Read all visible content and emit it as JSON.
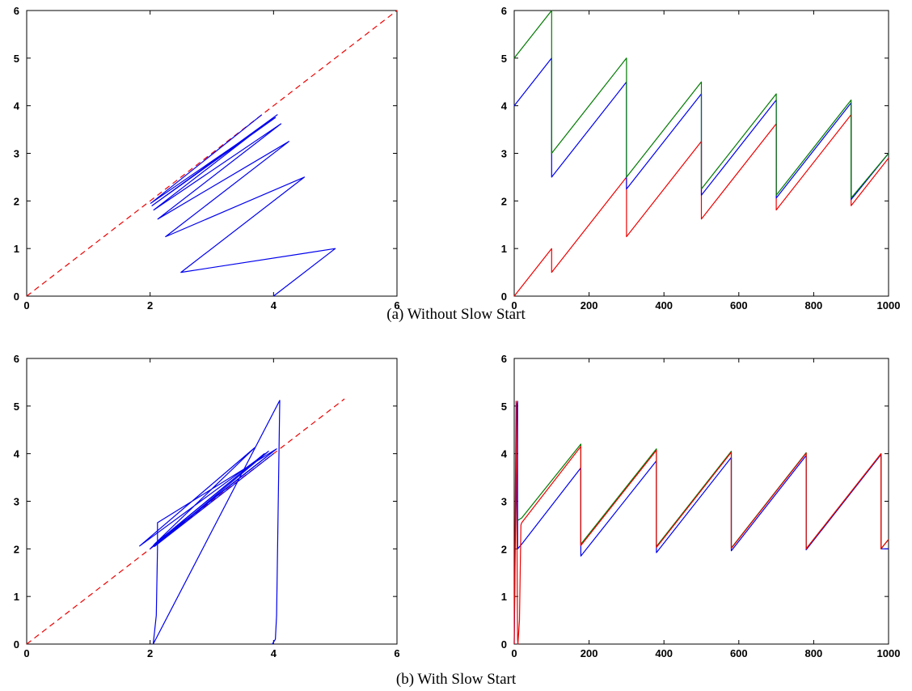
{
  "captions": {
    "a": "(a)  Without Slow Start",
    "b": "(b)  With Slow Start"
  },
  "colors": {
    "blue": "#0000ee",
    "red": "#ee0000",
    "green": "#007a00"
  },
  "chart_data": [
    {
      "type": "line",
      "xlim": [
        0,
        6
      ],
      "ylim": [
        0,
        6
      ],
      "xticks": [
        "0",
        "2",
        "4",
        "6"
      ],
      "yticks": [
        "0",
        "1",
        "2",
        "3",
        "4",
        "5",
        "6"
      ],
      "grid": false,
      "series": [
        {
          "color": "#ee0000",
          "dashed": true,
          "x": [
            0,
            6
          ],
          "y": [
            0,
            6
          ]
        },
        {
          "color": "#0000ee",
          "x": [
            4,
            5,
            2.5,
            4.5,
            2.25,
            4.25,
            2.125,
            4.12,
            2.06,
            4.06,
            2.03,
            4.03,
            2.01,
            3.81
          ],
          "y": [
            0,
            1,
            0.5,
            2.5,
            1.25,
            3.25,
            1.62,
            3.62,
            1.81,
            3.81,
            1.9,
            3.75,
            1.95,
            3.81
          ]
        }
      ]
    },
    {
      "type": "line",
      "xlim": [
        0,
        1000
      ],
      "ylim": [
        0,
        6
      ],
      "xticks": [
        "0",
        "200",
        "400",
        "600",
        "800",
        "1000"
      ],
      "yticks": [
        "0",
        "1",
        "2",
        "3",
        "4",
        "5",
        "6"
      ],
      "grid": false,
      "series": [
        {
          "color": "#ee0000",
          "x": [
            0,
            100,
            100,
            300,
            300,
            500,
            500,
            700,
            700,
            900,
            900,
            1000
          ],
          "y": [
            0,
            1,
            0.5,
            2.5,
            1.25,
            3.25,
            1.62,
            3.62,
            1.81,
            3.81,
            1.9,
            2.9
          ]
        },
        {
          "color": "#0000ee",
          "x": [
            0,
            100,
            100,
            300,
            300,
            500,
            500,
            700,
            700,
            900,
            900,
            1000
          ],
          "y": [
            4,
            5,
            2.5,
            4.5,
            2.25,
            4.25,
            2.12,
            4.12,
            2.06,
            4.06,
            2.03,
            3.0
          ]
        },
        {
          "color": "#007a00",
          "x": [
            0,
            100,
            100,
            300,
            300,
            500,
            500,
            700,
            700,
            900,
            900,
            1000
          ],
          "y": [
            5,
            6,
            3,
            5,
            2.5,
            4.5,
            2.25,
            4.25,
            2.12,
            4.12,
            2.06,
            3.0
          ]
        }
      ]
    },
    {
      "type": "line",
      "xlim": [
        0,
        6
      ],
      "ylim": [
        0,
        6
      ],
      "xticks": [
        "0",
        "2",
        "4",
        "6"
      ],
      "yticks": [
        "0",
        "1",
        "2",
        "3",
        "4",
        "5",
        "6"
      ],
      "grid": false,
      "series": [
        {
          "color": "#ee0000",
          "dashed": true,
          "x": [
            0,
            5.15
          ],
          "y": [
            0,
            5.15
          ]
        },
        {
          "color": "#0000ee",
          "x": [
            3.98,
            4.03,
            4.05,
            4.1,
            2.05,
            2.1,
            2.12,
            2.12,
            4.05,
            2.0,
            3.95,
            2.02,
            3.9,
            2.05,
            3.85,
            2.07,
            3.7,
            1.83,
            3.92,
            2.07,
            4.0
          ],
          "y": [
            0,
            0.1,
            0.6,
            5.12,
            0,
            0.6,
            2.0,
            2.55,
            4.1,
            2.0,
            4.0,
            2.03,
            3.95,
            2.07,
            4.0,
            2.1,
            4.13,
            2.06,
            4.05,
            2.05,
            4.0
          ]
        }
      ]
    },
    {
      "type": "line",
      "xlim": [
        0,
        1000
      ],
      "ylim": [
        0,
        6
      ],
      "xticks": [
        "0",
        "200",
        "400",
        "600",
        "800",
        "1000"
      ],
      "yticks": [
        "0",
        "1",
        "2",
        "3",
        "4",
        "5",
        "6"
      ],
      "grid": false,
      "series": [
        {
          "color": "#0000ee",
          "x": [
            0,
            7,
            9,
            9,
            20,
            178,
            178,
            380,
            380,
            580,
            580,
            780,
            780,
            980,
            980,
            1000
          ],
          "y": [
            0,
            5.0,
            5.1,
            2.0,
            2.1,
            3.7,
            1.85,
            3.85,
            1.92,
            3.92,
            1.96,
            3.96,
            1.98,
            3.98,
            2.0,
            2.0
          ]
        },
        {
          "color": "#007a00",
          "x": [
            10,
            20,
            178,
            178,
            380,
            380,
            580,
            580,
            780,
            780,
            980,
            980,
            1000
          ],
          "y": [
            2.6,
            2.65,
            4.2,
            2.1,
            4.1,
            2.05,
            4.05,
            2.02,
            4.02,
            2.0,
            4.0,
            2.0,
            2.2
          ]
        },
        {
          "color": "#ee0000",
          "x": [
            0,
            5,
            9,
            10,
            14,
            18,
            20,
            178,
            178,
            380,
            380,
            580,
            580,
            780,
            780,
            980,
            980,
            1000
          ],
          "y": [
            0,
            5.1,
            0.1,
            0,
            0.5,
            2.5,
            2.55,
            4.15,
            2.07,
            4.07,
            2.03,
            4.03,
            2.01,
            4.01,
            2.0,
            4.0,
            2.0,
            2.2
          ]
        }
      ]
    }
  ]
}
